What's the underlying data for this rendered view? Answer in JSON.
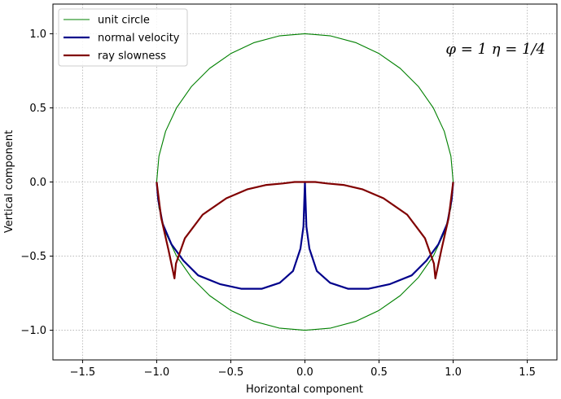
{
  "chart_data": {
    "type": "line",
    "xlabel": "Horizontal component",
    "ylabel": "Vertical component",
    "xlim": [
      -1.7,
      1.7
    ],
    "ylim": [
      -1.2,
      1.2
    ],
    "xticks": [
      -1.5,
      -1.0,
      -0.5,
      0.0,
      0.5,
      1.0,
      1.5
    ],
    "xtick_labels": [
      "−1.5",
      "−1.0",
      "−0.5",
      "0.0",
      "0.5",
      "1.0",
      "1.5"
    ],
    "yticks": [
      -1.0,
      -0.5,
      0.0,
      0.5,
      1.0
    ],
    "ytick_labels": [
      "−1.0",
      "−0.5",
      "0.0",
      "0.5",
      "1.0"
    ],
    "grid": true,
    "legend_position": "top-left",
    "annotation": "φ = 1    η = 1/4",
    "series": [
      {
        "name": "unit circle",
        "color": "#008000",
        "x": [
          1.0,
          0.985,
          0.94,
          0.866,
          0.766,
          0.643,
          0.5,
          0.342,
          0.174,
          0.0,
          -0.174,
          -0.342,
          -0.5,
          -0.643,
          -0.766,
          -0.866,
          -0.94,
          -0.985,
          -1.0,
          -0.985,
          -0.94,
          -0.866,
          -0.766,
          -0.643,
          -0.5,
          -0.342,
          -0.174,
          0.0,
          0.174,
          0.342,
          0.5,
          0.643,
          0.766,
          0.866,
          0.94,
          0.985,
          1.0
        ],
        "y": [
          0.0,
          0.174,
          0.342,
          0.5,
          0.643,
          0.766,
          0.866,
          0.94,
          0.985,
          1.0,
          0.985,
          0.94,
          0.866,
          0.766,
          0.643,
          0.5,
          0.342,
          0.174,
          0.0,
          -0.174,
          -0.342,
          -0.5,
          -0.643,
          -0.766,
          -0.866,
          -0.94,
          -0.985,
          -1.0,
          -0.985,
          -0.94,
          -0.866,
          -0.766,
          -0.643,
          -0.5,
          -0.342,
          -0.174,
          0.0
        ]
      },
      {
        "name": "normal velocity",
        "color": "#00008b",
        "x": [
          -1.0,
          -0.99,
          -0.96,
          -0.9,
          -0.82,
          -0.72,
          -0.57,
          -0.43,
          -0.29,
          -0.17,
          -0.08,
          -0.03,
          -0.01,
          0.0,
          0.01,
          0.03,
          0.08,
          0.17,
          0.29,
          0.43,
          0.57,
          0.72,
          0.82,
          0.9,
          0.96,
          0.99,
          1.0
        ],
        "y": [
          0.0,
          -0.12,
          -0.28,
          -0.42,
          -0.53,
          -0.63,
          -0.69,
          -0.72,
          -0.72,
          -0.68,
          -0.6,
          -0.45,
          -0.3,
          0.0,
          -0.3,
          -0.45,
          -0.6,
          -0.68,
          -0.72,
          -0.72,
          -0.69,
          -0.63,
          -0.53,
          -0.42,
          -0.28,
          -0.12,
          0.0
        ]
      },
      {
        "name": "ray slowness",
        "color": "#800000",
        "x": [
          -1.0,
          -0.97,
          -0.92,
          -0.88,
          -0.87,
          -0.81,
          -0.69,
          -0.53,
          -0.39,
          -0.26,
          -0.15,
          -0.07,
          0.0,
          0.07,
          0.15,
          0.26,
          0.39,
          0.53,
          0.69,
          0.81,
          0.87,
          0.88,
          0.92,
          0.97,
          1.0
        ],
        "y": [
          0.0,
          -0.24,
          -0.46,
          -0.65,
          -0.55,
          -0.38,
          -0.22,
          -0.11,
          -0.05,
          -0.02,
          -0.01,
          0.0,
          0.0,
          0.0,
          -0.01,
          -0.02,
          -0.05,
          -0.11,
          -0.22,
          -0.38,
          -0.55,
          -0.65,
          -0.46,
          -0.24,
          0.0
        ]
      }
    ]
  }
}
